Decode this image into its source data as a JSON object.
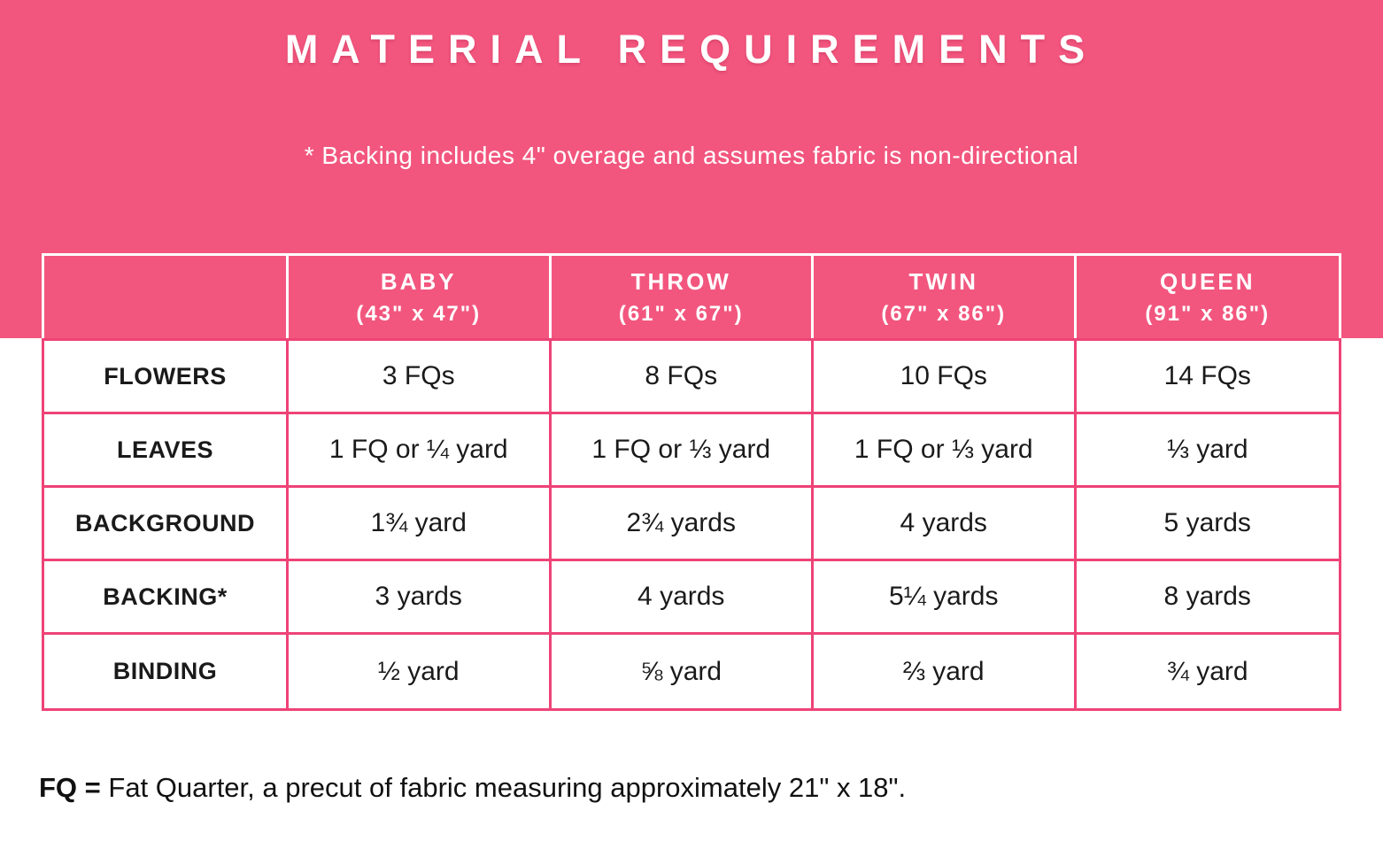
{
  "theme": {
    "band_pink": "#F2567E",
    "border_pink": "#EE4377",
    "text_white": "#FFFFFF",
    "text_dark": "#1A1A1A"
  },
  "header": {
    "title": "MATERIAL REQUIREMENTS",
    "note": "* Backing includes 4\" overage and assumes fabric is non-directional"
  },
  "table": {
    "columns": [
      {
        "name": "BABY",
        "size": "(43\" x 47\")"
      },
      {
        "name": "THROW",
        "size": "(61\" x 67\")"
      },
      {
        "name": "TWIN",
        "size": "(67\" x 86\")"
      },
      {
        "name": "QUEEN",
        "size": "(91\" x 86\")"
      }
    ],
    "rows": [
      {
        "label": "FLOWERS",
        "values": [
          "3 FQs",
          "8 FQs",
          "10 FQs",
          "14 FQs"
        ]
      },
      {
        "label": "LEAVES",
        "values": [
          "1 FQ or ¼ yard",
          "1 FQ or ⅓ yard",
          "1 FQ or ⅓ yard",
          "⅓ yard"
        ]
      },
      {
        "label": "BACKGROUND",
        "values": [
          "1¾ yard",
          "2¾ yards",
          "4 yards",
          "5 yards"
        ]
      },
      {
        "label": "BACKING*",
        "values": [
          "3 yards",
          "4 yards",
          "5¼ yards",
          "8 yards"
        ]
      },
      {
        "label": "BINDING",
        "values": [
          "½ yard",
          "⅝ yard",
          "⅔ yard",
          "¾ yard"
        ]
      }
    ]
  },
  "footer": {
    "abbr": "FQ =",
    "definition": " Fat Quarter, a precut of fabric measuring approximately 21\" x 18\"."
  }
}
